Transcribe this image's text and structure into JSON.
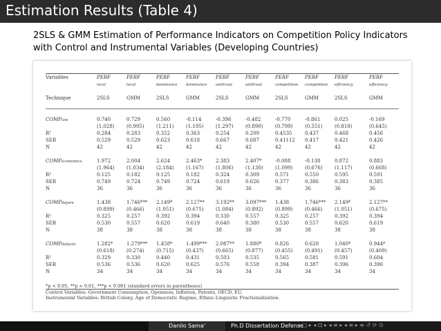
{
  "slide": {
    "title": "Estimation Results (Table 4)",
    "subtitle_line1": "2SLS & GMM Estimation of Performance Indicators on Competition Policy Indicators",
    "subtitle_line2": "with Control and Instrumental Variables (Developing Countries)"
  },
  "table": {
    "header_variables": "Variables",
    "header_technique": "Technique",
    "columns": [
      {
        "perf": "PERF",
        "sub": "local",
        "tech": "2SLS"
      },
      {
        "perf": "PERF",
        "sub": "local",
        "tech": "GMM"
      },
      {
        "perf": "PERF",
        "sub": "dominance",
        "tech": "2SLS"
      },
      {
        "perf": "PERF",
        "sub": "dominance",
        "tech": "GMM"
      },
      {
        "perf": "PERF",
        "sub": "antitrust",
        "tech": "2SLS"
      },
      {
        "perf": "PERF",
        "sub": "antitrust",
        "tech": "GMM"
      },
      {
        "perf": "PERF",
        "sub": "competition",
        "tech": "2SLS"
      },
      {
        "perf": "PERF",
        "sub": "competition",
        "tech": "GMM"
      },
      {
        "perf": "PERF",
        "sub": "efficiency",
        "tech": "2SLS"
      },
      {
        "perf": "PERF",
        "sub": "efficiency",
        "tech": "GMM"
      }
    ],
    "sections": [
      {
        "var": "COMP",
        "var_sub": "law",
        "coef": [
          "0.740",
          "0.729",
          "0.560",
          "-0.114",
          "-0.396",
          "-0.482",
          "-0.770",
          "-0.861",
          "0.025",
          "-0.169"
        ],
        "se": [
          "(1.028)",
          "(0.995)",
          "(1.211)",
          "(1.195)",
          "(1.297)",
          "(0.890)",
          "(0.799)",
          "(0.551)",
          "(0.818)",
          "(0.645)"
        ],
        "r2": [
          "0.284",
          "0.283",
          "0.352",
          "0.363",
          "0.254",
          "0.209",
          "0.4535",
          "0.437",
          "0.468",
          "0.456"
        ],
        "ser": [
          "0.529",
          "0.529",
          "0.623",
          "0.618",
          "0.667",
          "0.687",
          "0.41112",
          "0.417",
          "0.421",
          "0.426"
        ],
        "n": [
          "42",
          "42",
          "42",
          "42",
          "42",
          "42",
          "42",
          "42",
          "42",
          "42"
        ]
      },
      {
        "var": "COMP",
        "var_sub": "economics",
        "coef": [
          "1.972",
          "2.004",
          "2.624",
          "2.463*",
          "2.383",
          "2.407*",
          "-0.088",
          "-0.138",
          "0.872",
          "0.883"
        ],
        "se": [
          "(1.964)",
          "(1.034)",
          "(2.184)",
          "(1.167)",
          "(1.806)",
          "(1.130)",
          "(1.099)",
          "(0.676)",
          "(1.117)",
          "(0.668)"
        ],
        "r2": [
          "0.125",
          "0.182",
          "0.125",
          "0.182",
          "0.324",
          "0.309",
          "0.571",
          "0.550",
          "0.595",
          "0.591"
        ],
        "ser": [
          "0.749",
          "0.724",
          "0.749",
          "0.724",
          "0.619",
          "0.626",
          "0.377",
          "0.386",
          "0.383",
          "0.385"
        ],
        "n": [
          "36",
          "36",
          "36",
          "36",
          "36",
          "36",
          "36",
          "36",
          "36",
          "36"
        ]
      },
      {
        "var": "COMP",
        "var_sub": "dejure",
        "coef": [
          "1.438",
          "1.746***",
          "2.149*",
          "2.127**",
          "3.192**",
          "3.097***",
          "1.438",
          "1.746***",
          "2.149*",
          "2.127**"
        ],
        "se": [
          "(0.899)",
          "(0.466)",
          "(1.051)",
          "(0.675)",
          "(1.084)",
          "(0.892)",
          "(0.899)",
          "(0.466)",
          "(1.051)",
          "(0.675)"
        ],
        "r2": [
          "0.325",
          "0.257",
          "0.392",
          "0.394",
          "0.330",
          "0.557",
          "0.325",
          "0.257",
          "0.392",
          "0.394"
        ],
        "ser": [
          "0.530",
          "0.557",
          "0.620",
          "0.619",
          "0.640",
          "0.380",
          "0.530",
          "0.557",
          "0.620",
          "0.619"
        ],
        "n": [
          "38",
          "38",
          "38",
          "38",
          "38",
          "38",
          "38",
          "38",
          "38",
          "38"
        ]
      },
      {
        "var": "COMP",
        "var_sub": "defacto",
        "coef": [
          "1.282*",
          "1.279***",
          "1.458*",
          "1.499***",
          "2.087**",
          "1.880*",
          "0.826",
          "0.620",
          "1.040*",
          "0.944*"
        ],
        "se": [
          "(0.618)",
          "(0.274)",
          "(0.715)",
          "(0.437)",
          "(0.665)",
          "(0.877)",
          "(0.455)",
          "(0.491)",
          "(0.457)",
          "(0.409)"
        ],
        "r2": [
          "0.329",
          "0.330",
          "0.440",
          "0.431",
          "0.503",
          "0.535",
          "0.565",
          "0.581",
          "0.591",
          "0.604"
        ],
        "ser": [
          "0.536",
          "0.536",
          "0.620",
          "0.625",
          "0.576",
          "0.558",
          "0.394",
          "0.387",
          "0.396",
          "0.390"
        ],
        "n": [
          "34",
          "34",
          "34",
          "34",
          "34",
          "34",
          "34",
          "34",
          "34",
          "34"
        ]
      }
    ],
    "row_labels": {
      "r2": "R²",
      "ser": "SER",
      "n": "N"
    },
    "footnotes": [
      "*p < 0.05, **p < 0.01, ***p < 0.001 (standard errors in parentheses)",
      "Control Variables: Government Consumption, Openness, Inflation, Patents, OECD, EU.",
      "Instrumental Variables: British Colony, Age of Democratic Regime, Ethnic-Linguistic Fractionalization."
    ]
  },
  "footer": {
    "author": "Danilo Sama'",
    "event": "Ph.D Dissertation Defense",
    "nav_symbols": "◂ □ ▸  ◂ ⊡ ▸  ◂ ≡ ▸  ◂ ≡ ▸   ≡   ↺ ⟳ ⊙"
  }
}
